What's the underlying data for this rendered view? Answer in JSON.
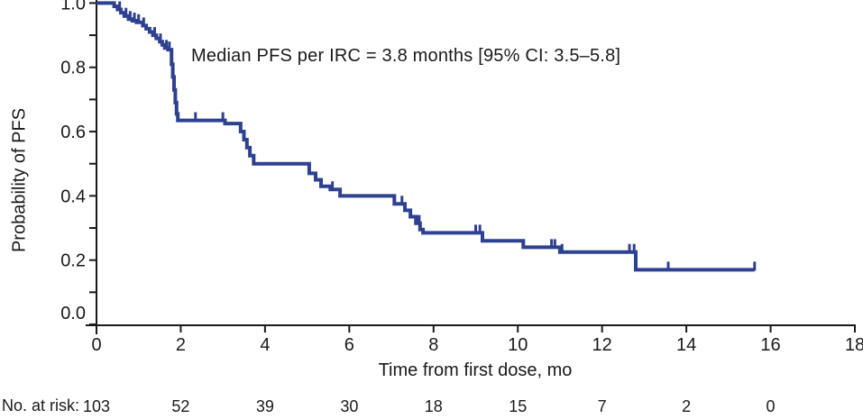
{
  "chart_data": {
    "type": "line",
    "variant": "kaplan-meier-step",
    "title": "",
    "annotation": "Median PFS per IRC = 3.8 months [95% CI: 3.5–5.8]",
    "xlabel": "Time from first dose, mo",
    "ylabel": "Probability of PFS",
    "xlim": [
      0,
      18
    ],
    "ylim": [
      0.0,
      1.0
    ],
    "x_ticks": [
      0,
      2,
      4,
      6,
      8,
      10,
      12,
      14,
      16,
      18
    ],
    "y_ticks": [
      0.0,
      0.2,
      0.4,
      0.6,
      0.8,
      1.0
    ],
    "y_minor_ticks": [
      0.1,
      0.3,
      0.5,
      0.7,
      0.9
    ],
    "grid": false,
    "legend_position": "none",
    "colors": {
      "curve": "#2e4191",
      "axis": "#1a1a1a",
      "text": "#1a1a1a",
      "background": "#ffffff"
    },
    "series": [
      {
        "name": "PFS per IRC",
        "color": "#2e4191",
        "end_time": 15.62,
        "step_points": [
          [
            0.0,
            1.0
          ],
          [
            0.42,
            0.99
          ],
          [
            0.5,
            0.98
          ],
          [
            0.58,
            0.97
          ],
          [
            0.66,
            0.96
          ],
          [
            0.76,
            0.95
          ],
          [
            0.85,
            0.945
          ],
          [
            0.95,
            0.94
          ],
          [
            1.1,
            0.93
          ],
          [
            1.18,
            0.92
          ],
          [
            1.26,
            0.91
          ],
          [
            1.34,
            0.9
          ],
          [
            1.42,
            0.89
          ],
          [
            1.5,
            0.88
          ],
          [
            1.56,
            0.87
          ],
          [
            1.62,
            0.86
          ],
          [
            1.7,
            0.855
          ],
          [
            1.78,
            0.81
          ],
          [
            1.81,
            0.77
          ],
          [
            1.84,
            0.73
          ],
          [
            1.87,
            0.69
          ],
          [
            1.9,
            0.655
          ],
          [
            1.93,
            0.635
          ],
          [
            3.05,
            0.625
          ],
          [
            3.42,
            0.6
          ],
          [
            3.5,
            0.575
          ],
          [
            3.57,
            0.55
          ],
          [
            3.64,
            0.525
          ],
          [
            3.73,
            0.5
          ],
          [
            5.05,
            0.47
          ],
          [
            5.2,
            0.45
          ],
          [
            5.33,
            0.43
          ],
          [
            5.55,
            0.42
          ],
          [
            5.78,
            0.4
          ],
          [
            7.07,
            0.375
          ],
          [
            7.32,
            0.355
          ],
          [
            7.45,
            0.335
          ],
          [
            7.58,
            0.315
          ],
          [
            7.68,
            0.295
          ],
          [
            7.75,
            0.285
          ],
          [
            9.16,
            0.26
          ],
          [
            10.13,
            0.24
          ],
          [
            11.0,
            0.225
          ],
          [
            12.8,
            0.17
          ]
        ]
      }
    ],
    "censor_marks": [
      [
        0.55,
        0.98
      ],
      [
        0.7,
        0.96
      ],
      [
        0.8,
        0.95
      ],
      [
        0.9,
        0.945
      ],
      [
        1.0,
        0.94
      ],
      [
        1.12,
        0.93
      ],
      [
        1.38,
        0.9
      ],
      [
        1.52,
        0.88
      ],
      [
        1.66,
        0.86
      ],
      [
        1.73,
        0.855
      ],
      [
        2.35,
        0.635
      ],
      [
        3.0,
        0.635
      ],
      [
        5.6,
        0.42
      ],
      [
        7.25,
        0.375
      ],
      [
        7.61,
        0.315
      ],
      [
        7.66,
        0.315
      ],
      [
        9.0,
        0.285
      ],
      [
        9.1,
        0.285
      ],
      [
        10.8,
        0.24
      ],
      [
        10.88,
        0.24
      ],
      [
        11.05,
        0.225
      ],
      [
        12.65,
        0.225
      ],
      [
        12.76,
        0.225
      ],
      [
        13.57,
        0.17
      ],
      [
        15.62,
        0.17
      ]
    ],
    "at_risk": {
      "label": "No. at risk:",
      "times": [
        0,
        2,
        4,
        6,
        8,
        10,
        12,
        14,
        16
      ],
      "counts": [
        103,
        52,
        39,
        30,
        18,
        15,
        7,
        2,
        0
      ]
    }
  }
}
